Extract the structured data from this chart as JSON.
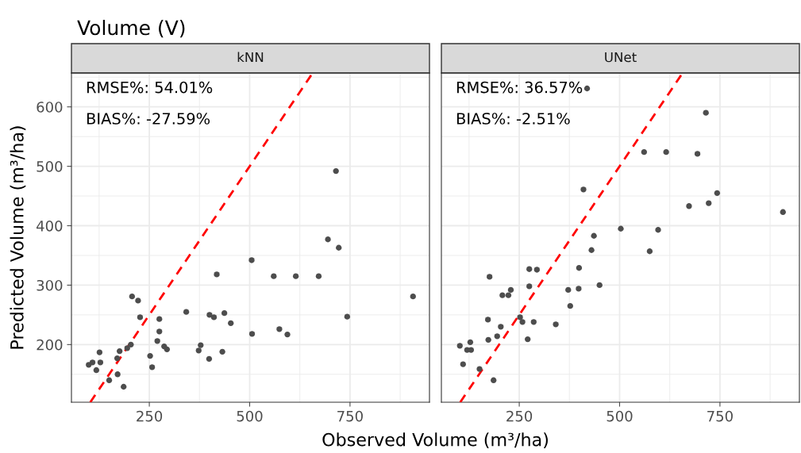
{
  "chart_data": [
    {
      "type": "scatter",
      "title": "Volume (V)",
      "subtitle": "kNN",
      "xlabel": "Observed Volume (m³/ha)",
      "ylabel": "Predicted Volume (m³/ha)",
      "series": [
        {
          "color": "#4d4d4d",
          "x": [
            99,
            108.5,
            118,
            126,
            128,
            150,
            171,
            176,
            170,
            186,
            195,
            204,
            207,
            222,
            227,
            252,
            257,
            270,
            275,
            275,
            287,
            294,
            342,
            373,
            378,
            399,
            400,
            411,
            418,
            432,
            437,
            453,
            505,
            506,
            715,
            695,
            722,
            560,
            615,
            672,
            574,
            594,
            743,
            907
          ],
          "values": [
            166,
            170,
            157,
            187,
            170,
            140,
            150,
            189,
            177,
            129,
            194,
            200,
            281,
            274,
            246,
            181,
            162,
            206,
            243,
            222,
            197,
            192,
            255,
            190,
            199,
            176,
            250,
            246,
            318,
            188,
            253,
            236,
            342,
            218,
            492,
            377,
            363,
            315,
            315,
            315,
            226,
            217,
            247,
            281
          ]
        },
        {
          "type": "line",
          "color": "#ff0000",
          "line_style": "dashed",
          "marker": "none",
          "x": [
            103,
            657
          ],
          "values": [
            103,
            657
          ]
        }
      ],
      "annotations": [
        "RMSE%: 54.01%",
        "BIAS%: -27.59%"
      ],
      "xlim": [
        56,
        948
      ],
      "ylim": [
        103,
        657
      ],
      "xticks": [
        250,
        500,
        750
      ],
      "yticks": [
        200,
        300,
        400,
        500,
        600
      ],
      "grid": true,
      "marker": "circle"
    },
    {
      "type": "scatter",
      "title": "UNet",
      "series": [
        {
          "color": "#4d4d4d",
          "x": [
            102,
            110,
            120,
            128,
            130,
            151,
            172,
            176,
            173,
            186,
            195,
            204,
            208,
            223,
            229,
            252,
            258,
            271,
            275,
            275,
            286,
            294,
            341,
            372,
            377,
            398,
            399,
            430,
            436,
            450,
            503,
            419,
            715,
            561,
            616,
            694,
            410,
            743,
            722,
            673,
            596,
            575,
            907
          ],
          "values": [
            198,
            167,
            191,
            204,
            191,
            159,
            242,
            314,
            208,
            140,
            214,
            230,
            283,
            283,
            292,
            246,
            238,
            209,
            298,
            327,
            238,
            326,
            234,
            292,
            265,
            294,
            329,
            359,
            383,
            300,
            395,
            631,
            590,
            524,
            524,
            521,
            461,
            455,
            438,
            433,
            393,
            357,
            423
          ]
        },
        {
          "type": "line",
          "color": "#ff0000",
          "line_style": "dashed",
          "marker": "none",
          "x": [
            103,
            657
          ],
          "values": [
            103,
            657
          ]
        }
      ],
      "annotations": [
        "RMSE%: 36.57%",
        "BIAS%: -2.51%"
      ],
      "xlim": [
        56,
        948
      ],
      "ylim": [
        103,
        657
      ],
      "xticks": [
        250,
        500,
        750
      ],
      "yticks": [
        200,
        300,
        400,
        500,
        600
      ],
      "tick_labels": "x",
      "grid": true,
      "marker": "circle"
    }
  ]
}
